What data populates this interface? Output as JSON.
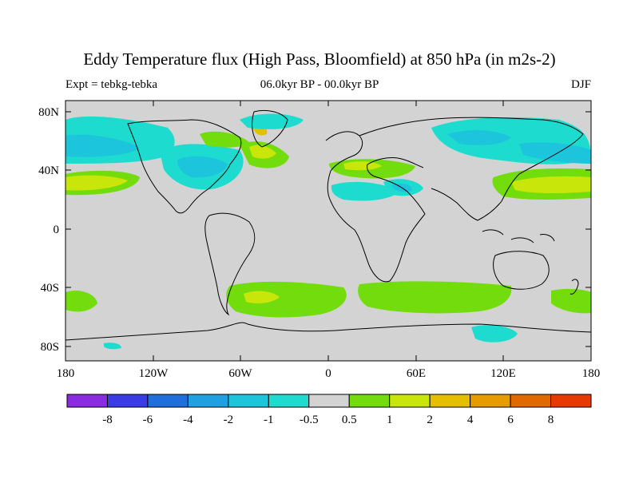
{
  "figure": {
    "title": "Eddy Temperature flux (High Pass, Bloomfield) at 850 hPa (in m2s-2)",
    "left_label": "Expt = tebkg-tebka",
    "center_label": "06.0kyr BP - 00.0kyr BP",
    "right_label": "DJF"
  },
  "axes": {
    "lat_ticks": [
      "80N",
      "40N",
      "0",
      "40S",
      "80S"
    ],
    "lon_ticks": [
      "180",
      "120W",
      "60W",
      "0",
      "60E",
      "120E",
      "180"
    ]
  },
  "colorbar": {
    "labels": [
      "-8",
      "-6",
      "-4",
      "-2",
      "-1",
      "-0.5",
      "0.5",
      "1",
      "2",
      "4",
      "6",
      "8"
    ],
    "colors": [
      "#8a2be2",
      "#3a3ae6",
      "#1e6fdc",
      "#1fa0e0",
      "#1cc4dc",
      "#1ddccf",
      "#d3d3d3",
      "#72dc0c",
      "#c8e60a",
      "#e6be00",
      "#e69b00",
      "#e06a00",
      "#e83a00"
    ]
  },
  "colors": {
    "land_ocean_background": "#d3d3d3",
    "coastline": "#000000"
  }
}
